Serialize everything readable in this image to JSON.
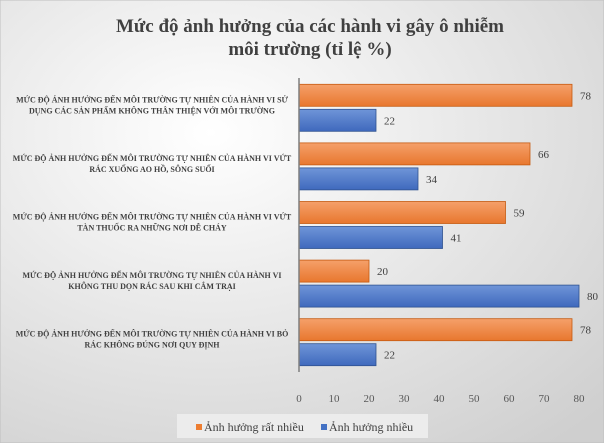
{
  "chart_data": {
    "type": "bar",
    "orientation": "horizontal",
    "title": "Mức độ ảnh hưởng của các hành vi gây ô nhiễm môi trường (tỉ lệ %)",
    "title_lines": [
      "Mức độ ảnh hưởng của các hành vi gây ô nhiễm",
      "môi trường (tỉ lệ %)"
    ],
    "categories": [
      [
        "MỨC ĐỘ ẢNH HƯỞNG ĐẾN MÔI TRƯỜNG TỰ NHIÊN CỦA HÀNH VI SỬ",
        "DỤNG CÁC SẢN PHẨM KHÔNG THÂN THIỆN VỚI MÔI TRƯỜNG"
      ],
      [
        "MỨC ĐỘ ẢNH HƯỞNG ĐẾN MÔI TRƯỜNG TỰ NHIÊN CỦA HÀNH VI VỨT",
        "RÁC XUỐNG AO HỒ, SÔNG SUỐI"
      ],
      [
        "MỨC ĐỘ ẢNH HƯỞNG ĐẾN MÔI TRƯỜNG TỰ NHIÊN CỦA HÀNH VI VỨT",
        "TÀN THUỐC RA NHỮNG NƠI DỄ CHÁY"
      ],
      [
        "MỨC ĐỘ ẢNH HƯỞNG ĐẾN MÔI TRƯỜNG TỰ NHIÊN CỦA HÀNH VI",
        "KHÔNG THU DỌN RÁC SAU KHI CẮM TRẠI"
      ],
      [
        "MỨC ĐỘ ẢNH HƯỞNG ĐẾN MÔI TRƯỜNG TỰ NHIÊN CỦA HÀNH VI BỎ",
        "RÁC KHÔNG ĐÚNG NƠI QUY ĐỊNH"
      ]
    ],
    "series": [
      {
        "name": "Ảnh hưởng rất nhiều",
        "color": "#ED7D31",
        "values": [
          78,
          66,
          59,
          20,
          78
        ]
      },
      {
        "name": "Ảnh hưởng nhiều",
        "color": "#4472C4",
        "values": [
          22,
          34,
          41,
          80,
          22
        ]
      }
    ],
    "xlim": [
      0,
      80
    ],
    "xticks": [
      0,
      10,
      20,
      30,
      40,
      50,
      60,
      70,
      80
    ],
    "xlabel": "",
    "ylabel": "",
    "grid": false,
    "legend_position": "bottom-left"
  }
}
